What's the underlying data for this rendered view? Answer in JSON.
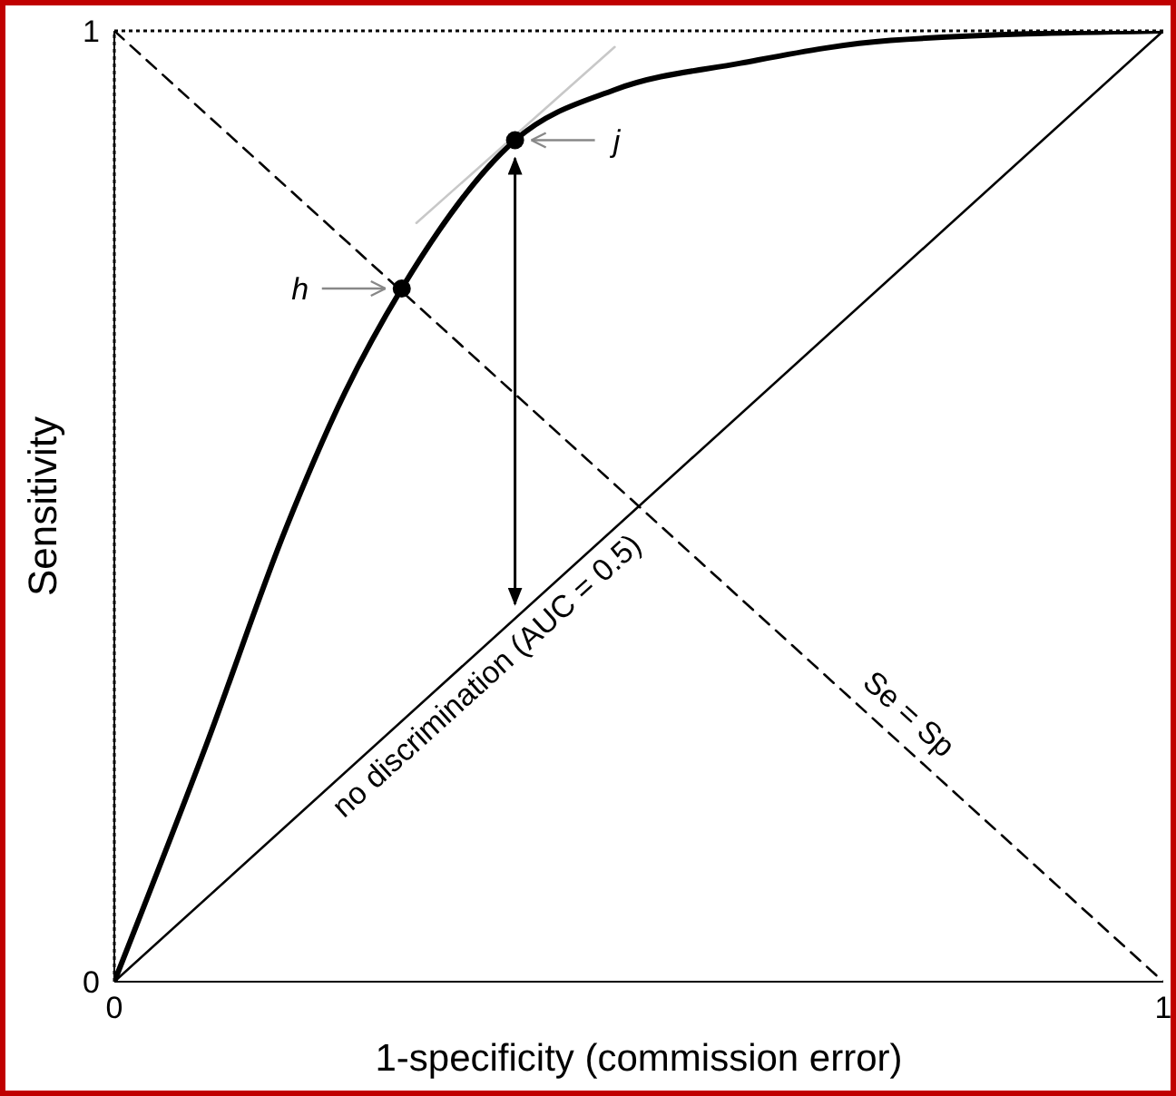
{
  "chart_data": {
    "type": "line",
    "xlabel": "1-specificity (commission error)",
    "ylabel": "Sensitivity",
    "xlim": [
      0,
      1
    ],
    "ylim": [
      0,
      1
    ],
    "xticks": [
      0,
      1
    ],
    "yticks": [
      0,
      1
    ],
    "grid": false,
    "marker": "none",
    "series": [
      {
        "color": "#000000",
        "x": [
          0,
          0.088,
          0.164,
          0.22,
          0.274,
          0.382,
          0.477,
          0.597,
          0.74,
          1
        ],
        "values": [
          0,
          0.25,
          0.478,
          0.62,
          0.729,
          0.885,
          0.938,
          0.966,
          0.99,
          1
        ]
      },
      {
        "color": "#000000",
        "x": [
          0,
          1
        ],
        "values": [
          0,
          1
        ]
      },
      {
        "color": "#000000",
        "line_style": "dashed",
        "x": [
          0,
          1
        ],
        "values": [
          1,
          0
        ]
      },
      {
        "color": "#c8c8c8",
        "x": [
          0.288,
          0.477
        ],
        "values": [
          0.798,
          0.983
        ]
      },
      {
        "type": "scatter",
        "color": "#000000",
        "marker": "circle",
        "x": [
          0.274,
          0.382
        ],
        "values": [
          0.729,
          0.885
        ]
      }
    ],
    "ref_lines": [
      {
        "axis": "y",
        "value": 1,
        "line_style": "dotted",
        "color": "#000000"
      },
      {
        "axis": "x",
        "value": 0,
        "line_style": "dotted",
        "color": "#000000"
      }
    ],
    "annotations": [
      "h",
      "j",
      "no discrimination (AUC = 0.5)",
      "Se = Sp"
    ]
  }
}
